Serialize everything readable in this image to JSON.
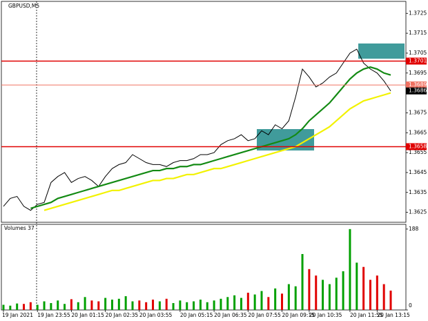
{
  "chart_data": [
    {
      "type": "line",
      "title": "GBPUSD,M5",
      "categories": [
        "19 Jan 2021",
        null,
        null,
        null,
        null,
        "19 Jan 23:55",
        null,
        null,
        null,
        null,
        "20 Jan 01:15",
        null,
        null,
        null,
        null,
        "20 Jan 02:35",
        null,
        null,
        null,
        null,
        "20 Jan 03:55",
        null,
        null,
        null,
        null,
        null,
        "20 Jan 05:15",
        null,
        null,
        null,
        null,
        "20 Jan 06:35",
        null,
        null,
        null,
        null,
        "20 Jan 07:55",
        null,
        null,
        null,
        null,
        "20 Jan 09:15",
        null,
        null,
        null,
        "20 Jan 10:35",
        null,
        null,
        null,
        null,
        null,
        "20 Jan 11:55",
        null,
        null,
        null,
        "20 Jan 13:15",
        null,
        null
      ],
      "series": [
        {
          "color": "#000000",
          "values": [
            1.3628,
            1.3632,
            1.3633,
            1.3628,
            1.3626,
            1.3629,
            1.363,
            1.364,
            1.3643,
            1.3645,
            1.364,
            1.3642,
            1.3643,
            1.3641,
            1.3638,
            1.3643,
            1.3647,
            1.3649,
            1.365,
            1.3654,
            1.3652,
            1.365,
            1.3649,
            1.3649,
            1.3648,
            1.365,
            1.3651,
            1.3651,
            1.3652,
            1.3654,
            1.3654,
            1.3655,
            1.3659,
            1.3661,
            1.3662,
            1.3664,
            1.3661,
            1.3662,
            1.3666,
            1.3664,
            1.3669,
            1.3667,
            1.3671,
            1.3683,
            1.3697,
            1.3693,
            1.3688,
            1.369,
            1.3693,
            1.3695,
            1.37,
            1.3705,
            1.3707,
            1.37,
            1.3697,
            1.3695,
            1.3691,
            1.3686
          ]
        },
        {
          "color": "#138a13",
          "values": [
            null,
            null,
            null,
            null,
            1.3627,
            1.3628,
            1.3629,
            1.363,
            1.3632,
            1.3633,
            1.3634,
            1.3635,
            1.3636,
            1.3637,
            1.3638,
            1.3639,
            1.364,
            1.3641,
            1.3642,
            1.3643,
            1.3644,
            1.3645,
            1.3646,
            1.3646,
            1.3647,
            1.3647,
            1.3648,
            1.3648,
            1.3649,
            1.3649,
            1.365,
            1.3651,
            1.3652,
            1.3653,
            1.3654,
            1.3655,
            1.3656,
            1.3657,
            1.3658,
            1.3659,
            1.366,
            1.3661,
            1.3662,
            1.3664,
            1.3667,
            1.3671,
            1.3674,
            1.3677,
            1.368,
            1.3684,
            1.3688,
            1.3692,
            1.3695,
            1.3697,
            1.3698,
            1.3697,
            1.3695,
            1.3694
          ]
        },
        {
          "color": "#f2f200",
          "values": [
            null,
            null,
            null,
            null,
            null,
            null,
            1.3626,
            1.3627,
            1.3628,
            1.3629,
            1.363,
            1.3631,
            1.3632,
            1.3633,
            1.3634,
            1.3635,
            1.3636,
            1.3636,
            1.3637,
            1.3638,
            1.3639,
            1.364,
            1.3641,
            1.3641,
            1.3642,
            1.3642,
            1.3643,
            1.3644,
            1.3644,
            1.3645,
            1.3646,
            1.3647,
            1.3647,
            1.3648,
            1.3649,
            1.365,
            1.3651,
            1.3652,
            1.3653,
            1.3654,
            1.3655,
            1.3656,
            1.3657,
            1.3658,
            1.366,
            1.3662,
            1.3664,
            1.3666,
            1.3668,
            1.3671,
            1.3674,
            1.3677,
            1.3679,
            1.3681,
            1.3682,
            1.3683,
            1.3684,
            1.3685
          ]
        }
      ],
      "levels": [
        {
          "value": 1.3701,
          "color": "#e00000"
        },
        {
          "value": 1.3658,
          "color": "#e00000"
        },
        {
          "value": 1.3689,
          "color": "#f07060"
        }
      ],
      "current": 1.3686,
      "ylim": [
        1.362,
        1.3731
      ],
      "yticks": [
        1.3625,
        1.3635,
        1.3645,
        1.3655,
        1.3665,
        1.3675,
        1.3695,
        1.3705,
        1.3715,
        1.3725
      ]
    },
    {
      "type": "bar",
      "title": "Volumes 37",
      "up_color": "#00a000",
      "down_color": "#e00000",
      "values": [
        12,
        10,
        15,
        14,
        18,
        12,
        20,
        16,
        22,
        14,
        25,
        18,
        30,
        22,
        20,
        28,
        24,
        26,
        32,
        20,
        22,
        18,
        24,
        20,
        26,
        16,
        22,
        18,
        20,
        24,
        18,
        22,
        26,
        30,
        34,
        28,
        40,
        36,
        44,
        30,
        50,
        38,
        60,
        55,
        130,
        95,
        80,
        70,
        60,
        75,
        90,
        188,
        110,
        100,
        70,
        80,
        60,
        45
      ],
      "ylim": [
        0,
        199
      ],
      "yticks": [
        0,
        188
      ]
    }
  ]
}
